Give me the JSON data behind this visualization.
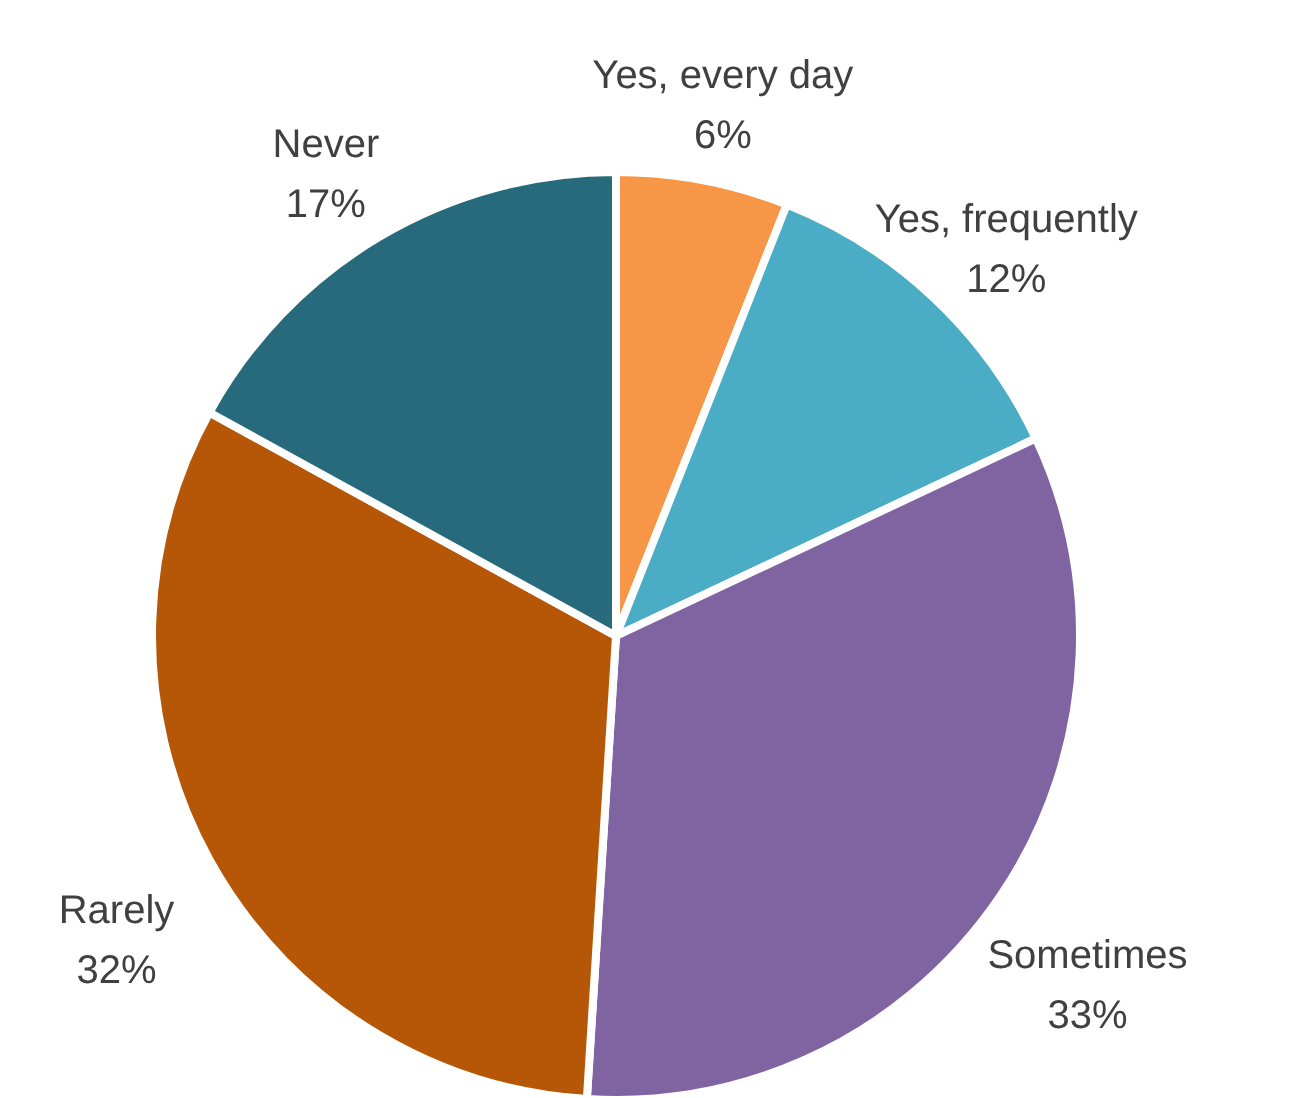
{
  "chart_data": {
    "type": "pie",
    "categories": [
      "Yes, every day",
      "Yes, frequently",
      "Sometimes",
      "Rarely",
      "Never"
    ],
    "values": [
      6,
      12,
      33,
      32,
      17
    ],
    "colors": [
      "#f79646",
      "#4bacc6",
      "#8064a2",
      "#b65708",
      "#276a7c"
    ],
    "value_labels": [
      "6%",
      "12%",
      "33%",
      "32%",
      "17%"
    ]
  }
}
